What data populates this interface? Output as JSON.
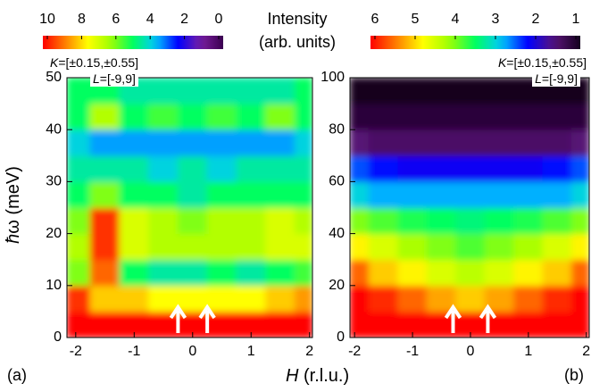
{
  "chart_data": [
    {
      "type": "heatmap",
      "panel_label": "(a)",
      "xlabel": "H (r.l.u.)",
      "ylabel": "ħω (meV)",
      "colorbar_label": "Intensity",
      "colorbar_sublabel": "(arb. units)",
      "annotations": [
        "K=[±0.15,±0.55]",
        "L=[-9,9]"
      ],
      "xlim": [
        -2.15,
        2.05
      ],
      "ylim": [
        0,
        50
      ],
      "xticks": [
        -2,
        -1,
        0,
        1,
        2
      ],
      "yticks": [
        0,
        10,
        20,
        30,
        40,
        50
      ],
      "x_edges": [
        -2.15,
        -1.75,
        -1.25,
        -0.75,
        -0.25,
        0.25,
        0.75,
        1.25,
        1.75,
        2.05
      ],
      "y_edges": [
        0,
        5,
        10,
        15,
        20,
        25,
        30,
        35,
        40,
        45,
        50
      ],
      "z": [
        [
          10,
          10,
          10,
          10,
          10,
          10,
          10,
          10,
          10
        ],
        [
          9.5,
          8,
          8,
          7.5,
          7.5,
          7.5,
          7.5,
          8,
          8.5
        ],
        [
          6,
          9,
          5,
          4.5,
          4.5,
          5,
          4.5,
          5,
          5.5
        ],
        [
          6.5,
          9.5,
          7,
          6.5,
          6.5,
          6.5,
          6.5,
          7,
          7
        ],
        [
          6,
          9.5,
          7,
          6.5,
          6,
          6.5,
          6.5,
          7,
          6.5
        ],
        [
          5,
          6,
          5,
          5,
          4.5,
          5,
          5,
          5,
          5
        ],
        [
          4.5,
          4.5,
          4.5,
          4,
          4.5,
          4,
          4.5,
          4.5,
          4.5
        ],
        [
          4,
          3.5,
          3.5,
          3.5,
          3.5,
          3.5,
          3.5,
          3.5,
          4
        ],
        [
          5,
          6.5,
          5,
          5.5,
          5,
          5.5,
          5,
          6,
          5
        ],
        [
          5,
          5,
          4.5,
          4.5,
          4.5,
          4.5,
          4.5,
          4.5,
          5
        ]
      ],
      "clim": [
        10,
        0
      ],
      "colorbar_ticks": [
        10,
        8,
        6,
        4,
        2,
        0
      ],
      "colormap": [
        "#3a0050",
        "#7a1fa0",
        "#0000ff",
        "#00c8ff",
        "#00ff60",
        "#a0ff00",
        "#ffff00",
        "#ff8000",
        "#ff0000"
      ],
      "arrows_x": [
        -0.25,
        0.25
      ],
      "arrow_color": "#ffffff"
    },
    {
      "type": "heatmap",
      "panel_label": "(b)",
      "annotations": [
        "K=[±0.15,±0.55]",
        "L=[-9,9]"
      ],
      "xlim": [
        -2.08,
        2.05
      ],
      "ylim": [
        0,
        100
      ],
      "xticks": [
        -2,
        -1,
        0,
        1,
        2
      ],
      "yticks": [
        0,
        20,
        40,
        60,
        80,
        100
      ],
      "x_edges": [
        -2.08,
        -1.75,
        -1.25,
        -0.75,
        -0.25,
        0.25,
        0.75,
        1.25,
        1.75,
        2.05
      ],
      "y_edges": [
        0,
        10,
        20,
        30,
        40,
        50,
        60,
        70,
        80,
        90,
        100
      ],
      "z": [
        [
          6,
          6,
          6,
          6,
          6,
          6,
          6,
          6,
          6
        ],
        [
          6,
          5.8,
          5.5,
          5.2,
          5,
          5.2,
          5.5,
          5.8,
          6
        ],
        [
          5.5,
          5,
          4.8,
          4.5,
          4.3,
          4.5,
          4.8,
          5,
          5.5
        ],
        [
          4.8,
          4.5,
          4.2,
          4,
          3.8,
          4,
          4.2,
          4.5,
          4.8
        ],
        [
          4,
          3.8,
          3.6,
          3.5,
          3.4,
          3.5,
          3.6,
          3.8,
          4
        ],
        [
          3,
          2.8,
          2.8,
          2.8,
          2.8,
          2.8,
          2.8,
          2.8,
          3
        ],
        [
          2.5,
          2.3,
          2.2,
          2.2,
          2.2,
          2.2,
          2.2,
          2.3,
          2.5
        ],
        [
          1.6,
          1.5,
          1.5,
          1.5,
          1.5,
          1.5,
          1.5,
          1.5,
          1.6
        ],
        [
          1.2,
          1.2,
          1.2,
          1.2,
          1.2,
          1.2,
          1.2,
          1.2,
          1.2
        ],
        [
          1,
          1,
          1,
          1,
          1,
          1,
          1,
          1,
          1
        ]
      ],
      "clim": [
        6,
        1
      ],
      "colorbar_ticks": [
        6,
        5,
        4,
        3,
        2,
        1
      ],
      "colormap": [
        "#14001e",
        "#5a1478",
        "#0000ff",
        "#00c8ff",
        "#00ff60",
        "#a0ff00",
        "#ffff00",
        "#ff8000",
        "#ff0000"
      ],
      "arrows_x": [
        -0.3,
        0.3
      ],
      "arrow_color": "#ffffff"
    }
  ]
}
